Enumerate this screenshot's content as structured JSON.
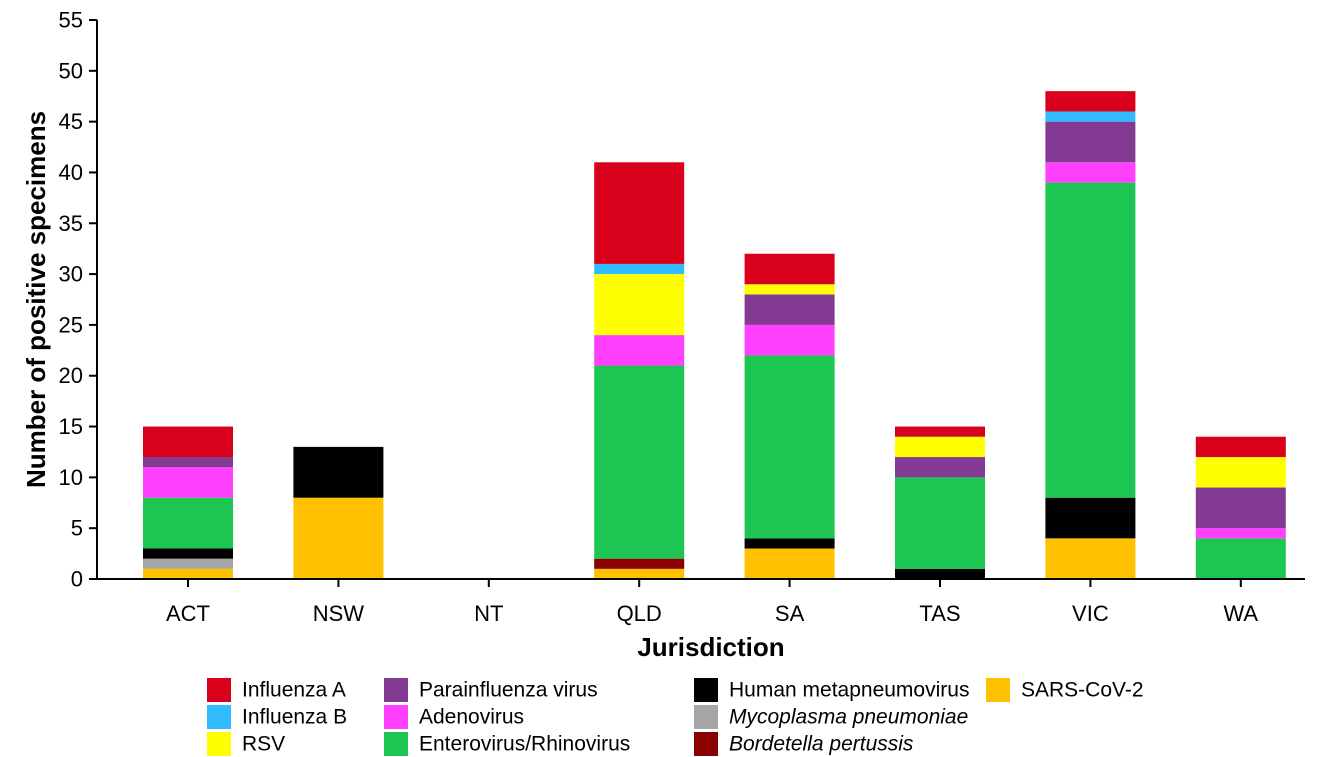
{
  "chart_data": {
    "type": "bar",
    "stacked": true,
    "xlabel": "Jurisdiction",
    "ylabel": "Number of positive specimens",
    "ylim": [
      0,
      55
    ],
    "yticks": [
      0,
      5,
      10,
      15,
      20,
      25,
      30,
      35,
      40,
      45,
      50,
      55
    ],
    "grid": false,
    "legend_position": "bottom",
    "categories": [
      "ACT",
      "NSW",
      "NT",
      "QLD",
      "SA",
      "TAS",
      "VIC",
      "WA"
    ],
    "series": [
      {
        "name": "SARS-CoV-2",
        "color": "#FFC000",
        "italic": false,
        "values": [
          1,
          8,
          0,
          1,
          3,
          0,
          4,
          0
        ]
      },
      {
        "name": "Bordetella pertussis",
        "color": "#8B0000",
        "italic": true,
        "values": [
          0,
          0,
          0,
          1,
          0,
          0,
          0,
          0
        ]
      },
      {
        "name": "Mycoplasma pneumoniae",
        "color": "#A6A6A6",
        "italic": true,
        "values": [
          1,
          0,
          0,
          0,
          0,
          0,
          0,
          0
        ]
      },
      {
        "name": "Human metapneumovirus",
        "color": "#000000",
        "italic": false,
        "values": [
          1,
          5,
          0,
          0,
          1,
          1,
          4,
          0
        ]
      },
      {
        "name": "Enterovirus/Rhinovirus",
        "color": "#1DC552",
        "italic": false,
        "values": [
          5,
          0,
          0,
          19,
          18,
          9,
          31,
          4
        ]
      },
      {
        "name": "Adenovirus",
        "color": "#FF40FF",
        "italic": false,
        "values": [
          3,
          0,
          0,
          3,
          3,
          0,
          2,
          1
        ]
      },
      {
        "name": "Parainfluenza virus",
        "color": "#833A92",
        "italic": false,
        "values": [
          1,
          0,
          0,
          0,
          3,
          2,
          4,
          4
        ]
      },
      {
        "name": "RSV",
        "color": "#FFFF00",
        "italic": false,
        "values": [
          0,
          0,
          0,
          6,
          1,
          2,
          0,
          3
        ]
      },
      {
        "name": "Influenza B",
        "color": "#33BBFF",
        "italic": false,
        "values": [
          0,
          0,
          0,
          1,
          0,
          0,
          1,
          0
        ]
      },
      {
        "name": "Influenza A",
        "color": "#D9001B",
        "italic": false,
        "values": [
          3,
          0,
          0,
          10,
          3,
          1,
          2,
          2
        ]
      }
    ],
    "legend_columns": [
      [
        "Influenza A",
        "Influenza B",
        "RSV"
      ],
      [
        "Parainfluenza virus",
        "Adenovirus",
        "Enterovirus/Rhinovirus"
      ],
      [
        "Human metapneumovirus",
        "Mycoplasma pneumoniae",
        "Bordetella pertussis"
      ],
      [
        "SARS-CoV-2"
      ]
    ]
  }
}
